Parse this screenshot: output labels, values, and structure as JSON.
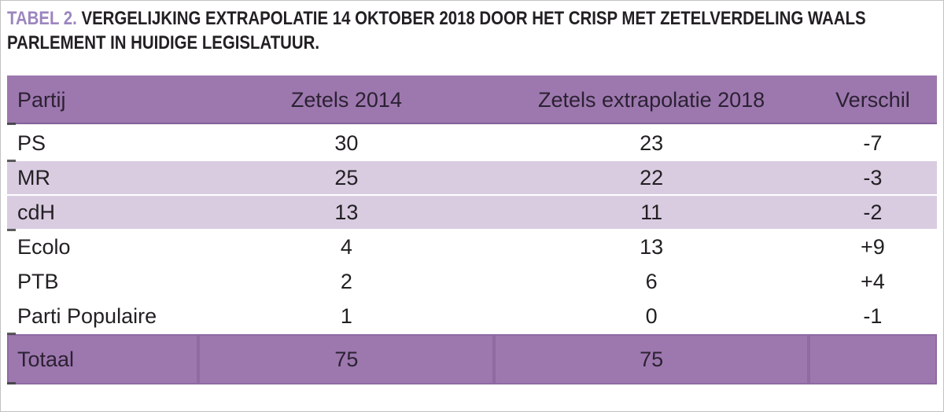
{
  "caption": {
    "prefix": "TABEL 2.",
    "line1": " VERGELIJKING EXTRAPOLATIE 14 OKTOBER 2018 DOOR HET CRISP MET ZETELVERDELING WAALS",
    "line2": "PARLEMENT IN HUIDIGE LEGISLATUUR."
  },
  "table": {
    "columns": [
      "Partij",
      "Zetels 2014",
      "Zetels extrapolatie 2018",
      "Verschil"
    ],
    "rows": [
      {
        "partij": "PS",
        "zetels_2014": "30",
        "zetels_extrapolatie_2018": "23",
        "verschil": "-7",
        "shaded": false
      },
      {
        "partij": "MR",
        "zetels_2014": "25",
        "zetels_extrapolatie_2018": "22",
        "verschil": "-3",
        "shaded": true
      },
      {
        "partij": "cdH",
        "zetels_2014": "13",
        "zetels_extrapolatie_2018": "11",
        "verschil": "-2",
        "shaded": true
      },
      {
        "partij": "Ecolo",
        "zetels_2014": "4",
        "zetels_extrapolatie_2018": "13",
        "verschil": "+9",
        "shaded": false
      },
      {
        "partij": "PTB",
        "zetels_2014": "2",
        "zetels_extrapolatie_2018": "6",
        "verschil": "+4",
        "shaded": false
      },
      {
        "partij": "Parti Populaire",
        "zetels_2014": "1",
        "zetels_extrapolatie_2018": "0",
        "verschil": "-1",
        "shaded": false
      }
    ],
    "total": {
      "partij": "Totaal",
      "zetels_2014": "75",
      "zetels_extrapolatie_2018": "75",
      "verschil": ""
    }
  },
  "chart_data": {
    "type": "table",
    "title": "TABEL 2. VERGELIJKING EXTRAPOLATIE 14 OKTOBER 2018 DOOR HET CRISP MET ZETELVERDELING WAALS PARLEMENT IN HUIDIGE LEGISLATUUR.",
    "columns": [
      "Partij",
      "Zetels 2014",
      "Zetels extrapolatie 2018",
      "Verschil"
    ],
    "rows": [
      [
        "PS",
        30,
        23,
        "-7"
      ],
      [
        "MR",
        25,
        22,
        "-3"
      ],
      [
        "cdH",
        13,
        11,
        "-2"
      ],
      [
        "Ecolo",
        4,
        13,
        "+9"
      ],
      [
        "PTB",
        2,
        6,
        "+4"
      ],
      [
        "Parti Populaire",
        1,
        0,
        "-1"
      ],
      [
        "Totaal",
        75,
        75,
        ""
      ]
    ]
  },
  "colors": {
    "header_bg": "#9d78ae",
    "header_edge": "#81619a",
    "stripe_bg": "#d9cce1",
    "title_accent": "#9c85bf",
    "text": "#232023",
    "page_border": "#c2c2c2"
  }
}
